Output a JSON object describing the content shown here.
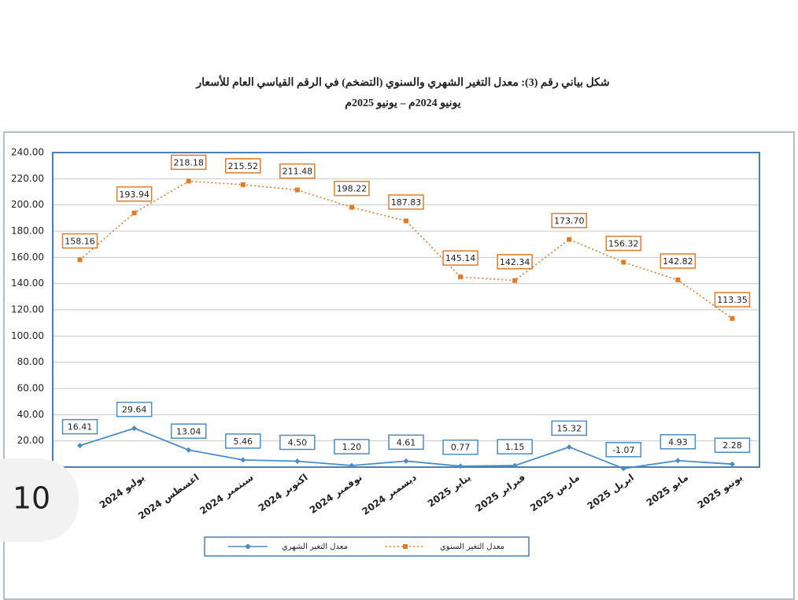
{
  "chart_data": {
    "type": "line",
    "title": "شكل بياني رقم (3): معدل التغير الشهري والسنوي (التضخم) في الرقم القياسي العام للأسعار",
    "subtitle": "يونيو 2024م – يونيو 2025م",
    "categories": [
      null,
      "يوليو 2024",
      "اغسطس 2024",
      "سبتمبر 2024",
      "اكتوبر 2024",
      "نوفمبر 2024",
      "ديسمبر 2024",
      "يناير 2025",
      "فبراير 2025",
      "مارس 2025",
      "ابريل 2025",
      "مايو 2025",
      "يونيو 2025"
    ],
    "series": [
      {
        "name": "معدل التغير الشهري",
        "color": "#4a8cc4",
        "line_style": "solid",
        "values": [
          16.41,
          29.64,
          13.04,
          5.46,
          4.5,
          1.2,
          4.61,
          0.77,
          1.15,
          15.32,
          -1.07,
          4.93,
          2.28
        ],
        "value_labels": [
          "16.41",
          "29.64",
          "13.04",
          "5.46",
          "4.50",
          "1.20",
          "4.61",
          "0.77",
          "1.15",
          "15.32",
          "-1.07",
          "4.93",
          "2.28"
        ]
      },
      {
        "name": "معدل التغير السنوي",
        "color": "#e07b28",
        "line_style": "dotted",
        "values": [
          158.16,
          193.94,
          218.18,
          215.52,
          211.48,
          198.22,
          187.83,
          145.14,
          142.34,
          173.7,
          156.32,
          142.82,
          113.35
        ],
        "value_labels": [
          "158.16",
          "193.94",
          "218.18",
          "215.52",
          "211.48",
          "198.22",
          "187.83",
          "145.14",
          "142.34",
          "173.70",
          "156.32",
          "142.82",
          "113.35"
        ]
      }
    ],
    "ylim": [
      0,
      240
    ],
    "yticks": [
      {
        "value": 20,
        "label": "20.00"
      },
      {
        "value": 40,
        "label": "40.00"
      },
      {
        "value": 60,
        "label": "60.00"
      },
      {
        "value": 80,
        "label": "80.00"
      },
      {
        "value": 100,
        "label": "100.00"
      },
      {
        "value": 120,
        "label": "120.00"
      },
      {
        "value": 140,
        "label": "140.00"
      },
      {
        "value": 160,
        "label": "160.00"
      },
      {
        "value": 180,
        "label": "180.00"
      },
      {
        "value": 200,
        "label": "200.00"
      },
      {
        "value": 220,
        "label": "220.00"
      },
      {
        "value": 240,
        "label": "240.00"
      }
    ],
    "grid": true
  },
  "page_number": "10"
}
